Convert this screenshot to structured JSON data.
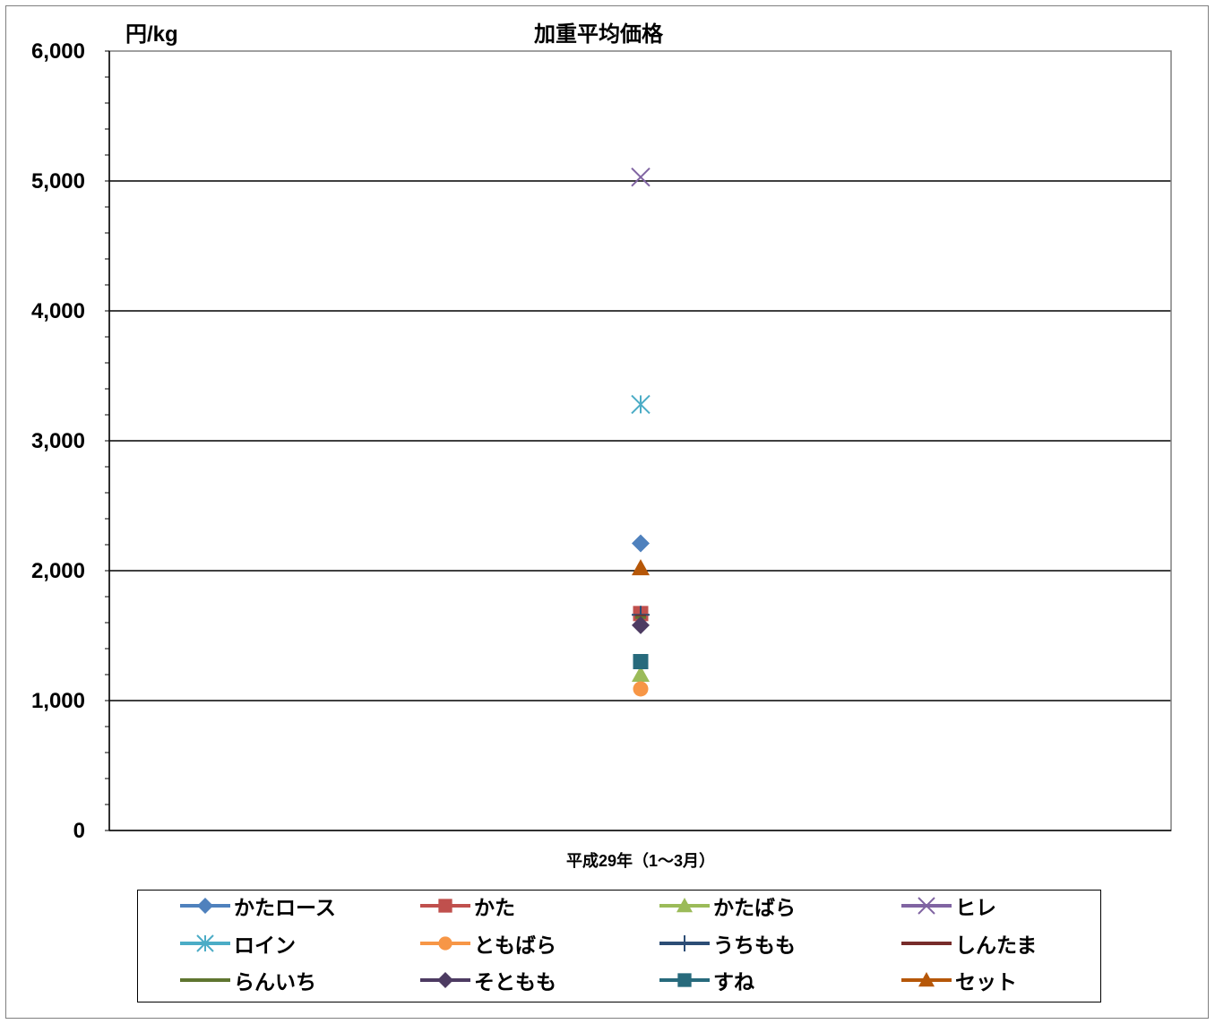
{
  "chart_data": {
    "type": "scatter",
    "title": "加重平均価格",
    "unit_label": "円/kg",
    "categories": [
      "平成29年（1～3月）"
    ],
    "ylim": [
      0,
      6000
    ],
    "y_ticks": [
      "0",
      "1,000",
      "2,000",
      "3,000",
      "4,000",
      "5,000",
      "6,000"
    ],
    "grid": true,
    "legend_position": "bottom",
    "series": [
      {
        "name": "かたロース",
        "values": [
          2210
        ],
        "color": "#4f81bd",
        "marker": "diamond"
      },
      {
        "name": "かた",
        "values": [
          1670
        ],
        "color": "#c0504d",
        "marker": "square"
      },
      {
        "name": "かたばら",
        "values": [
          1200
        ],
        "color": "#9bbb59",
        "marker": "triangle"
      },
      {
        "name": "ヒレ",
        "values": [
          5030
        ],
        "color": "#8064a2",
        "marker": "x"
      },
      {
        "name": "ロイン",
        "values": [
          3280
        ],
        "color": "#4bacc6",
        "marker": "star"
      },
      {
        "name": "ともばら",
        "values": [
          1090
        ],
        "color": "#f79646",
        "marker": "circle"
      },
      {
        "name": "うちもも",
        "values": [
          1660
        ],
        "color": "#2c4d75",
        "marker": "plus"
      },
      {
        "name": "しんたま",
        "values": [
          1650
        ],
        "color": "#772c2a",
        "marker": "none"
      },
      {
        "name": "らんいち",
        "values": [
          1640
        ],
        "color": "#5f7530",
        "marker": "none"
      },
      {
        "name": "そともも",
        "values": [
          1580
        ],
        "color": "#4d3b62",
        "marker": "diamond"
      },
      {
        "name": "すね",
        "values": [
          1300
        ],
        "color": "#276a7c",
        "marker": "square"
      },
      {
        "name": "セット",
        "values": [
          2020
        ],
        "color": "#b65708",
        "marker": "triangle"
      }
    ]
  }
}
